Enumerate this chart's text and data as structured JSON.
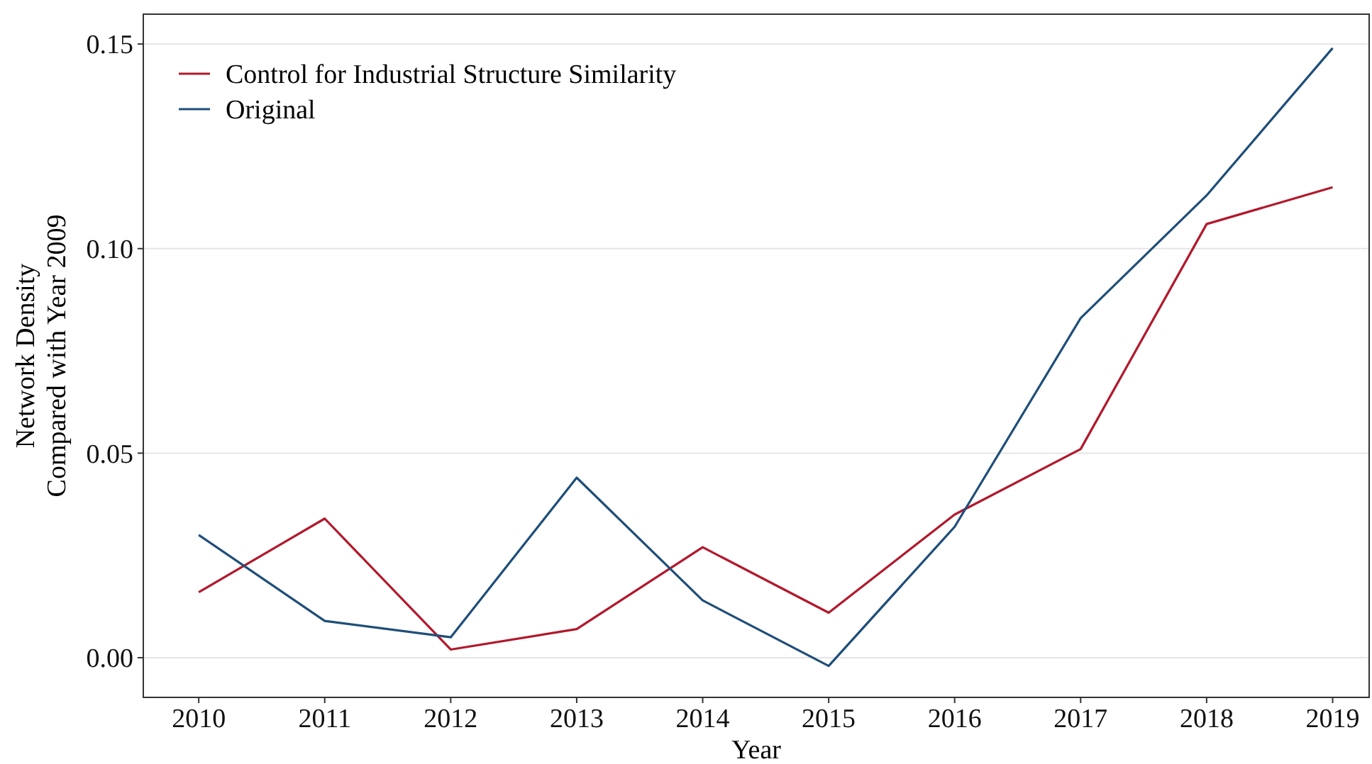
{
  "chart_data": {
    "type": "line",
    "xlabel": "Year",
    "ylabel": "Network Density\nCompared with Year 2009",
    "x": [
      2010,
      2011,
      2012,
      2013,
      2014,
      2015,
      2016,
      2017,
      2018,
      2019
    ],
    "series": [
      {
        "name": "Control for Industrial Structure Similarity",
        "color": "#b2182b",
        "values": [
          0.016,
          0.034,
          0.002,
          0.007,
          0.027,
          0.011,
          0.035,
          0.051,
          0.106,
          0.115
        ]
      },
      {
        "name": "Original",
        "color": "#1f4e79",
        "values": [
          0.03,
          0.009,
          0.005,
          0.044,
          0.014,
          -0.002,
          0.032,
          0.083,
          0.113,
          0.149
        ]
      }
    ],
    "xlim": [
      2009.56,
      2019.29
    ],
    "xticks": [
      2010,
      2011,
      2012,
      2013,
      2014,
      2015,
      2016,
      2017,
      2018,
      2019
    ],
    "ylim": [
      -0.0097,
      0.1573
    ],
    "yticks": [
      {
        "value": 0,
        "label": "0.00"
      },
      {
        "value": 0.05,
        "label": "0.05"
      },
      {
        "value": 0.1,
        "label": "0.10"
      },
      {
        "value": 0.15,
        "label": "0.15"
      }
    ],
    "grid": "y",
    "legend": "top left",
    "marker": "none",
    "line_style": "solid"
  }
}
